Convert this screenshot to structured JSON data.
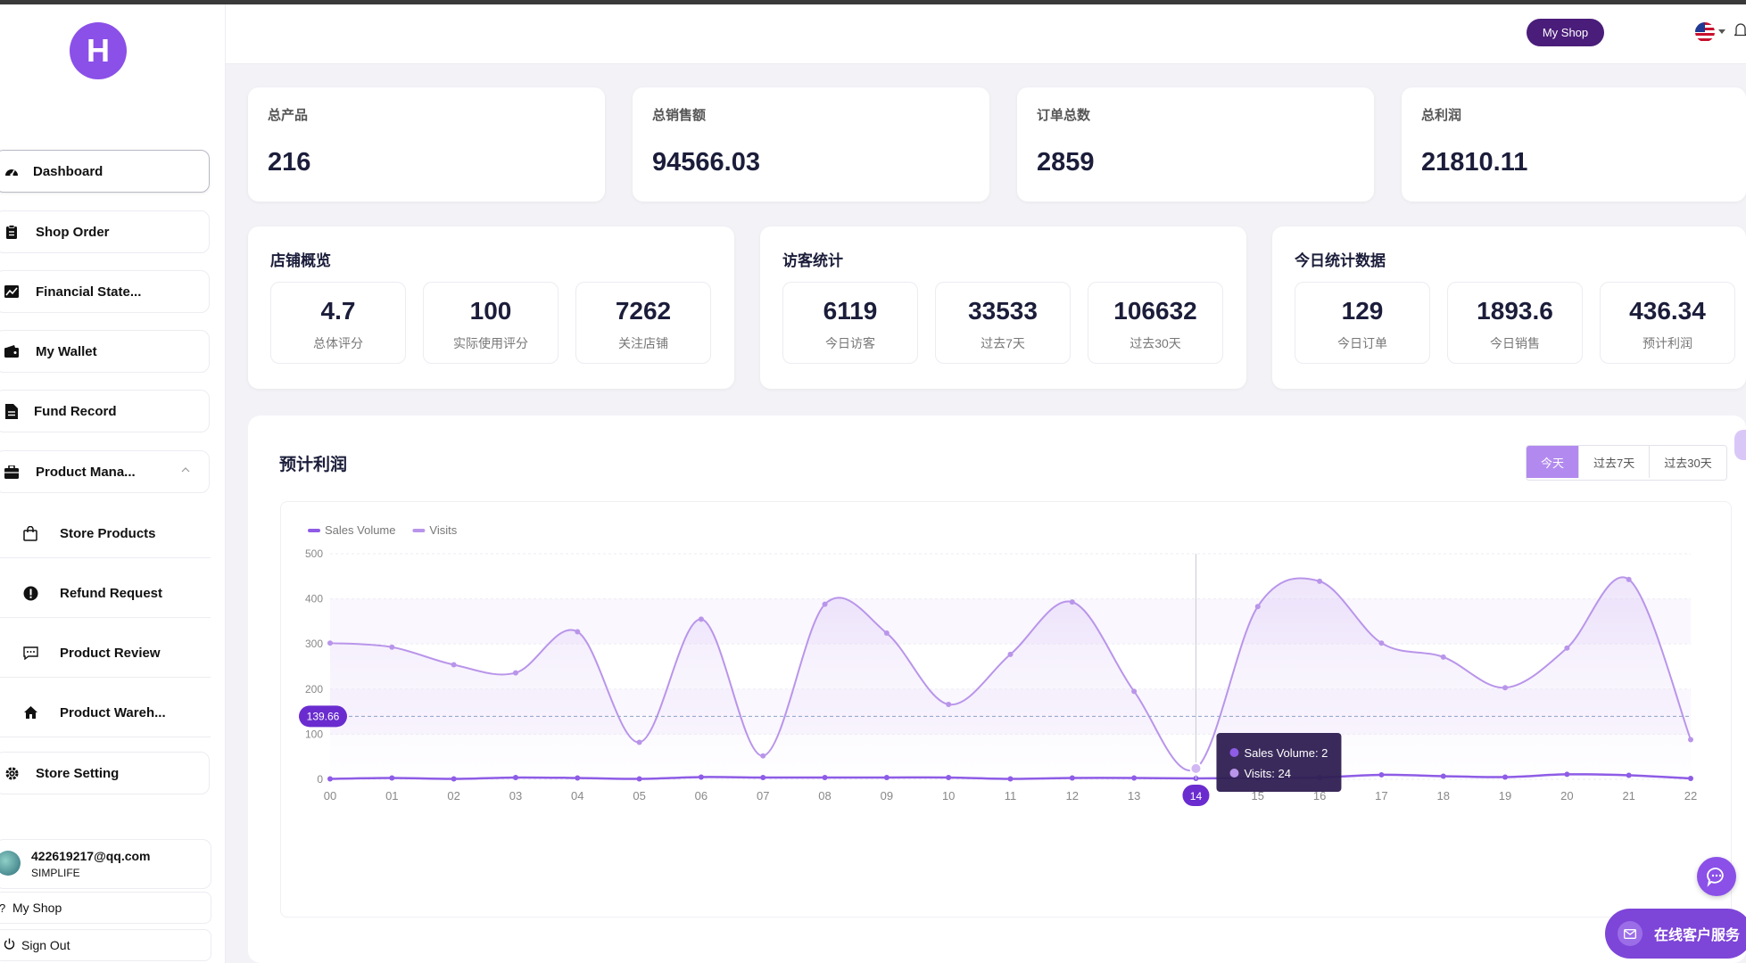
{
  "app": {
    "logo_letter": "H"
  },
  "sidebar": {
    "items": [
      {
        "label": "Dashboard",
        "icon": "dashboard-icon"
      },
      {
        "label": "Shop Order",
        "icon": "clipboard-icon"
      },
      {
        "label": "Financial State...",
        "icon": "line-chart-icon"
      },
      {
        "label": "My Wallet",
        "icon": "wallet-icon"
      },
      {
        "label": "Fund Record",
        "icon": "document-icon"
      },
      {
        "label": "Product Mana...",
        "icon": "briefcase-icon"
      }
    ],
    "sub_items": [
      {
        "label": "Store Products",
        "icon": "shopping-bag-icon"
      },
      {
        "label": "Refund Request",
        "icon": "alert-circle-icon"
      },
      {
        "label": "Product Review",
        "icon": "comment-icon"
      },
      {
        "label": "Product Wareh...",
        "icon": "home-icon"
      }
    ],
    "store_setting": {
      "label": "Store Setting",
      "icon": "gear-icon"
    },
    "user": {
      "email": "422619217@qq.com",
      "shop": "SIMPLIFE"
    },
    "my_shop_link": "My Shop",
    "sign_out": "Sign Out"
  },
  "header": {
    "my_shop_button": "My Shop"
  },
  "stats": [
    {
      "label": "总产品",
      "value": "216"
    },
    {
      "label": "总销售额",
      "value": "94566.03"
    },
    {
      "label": "订单总数",
      "value": "2859"
    },
    {
      "label": "总利润",
      "value": "21810.11"
    }
  ],
  "panels": [
    {
      "title": "店铺概览",
      "metrics": [
        {
          "value": "4.7",
          "label": "总体评分"
        },
        {
          "value": "100",
          "label": "实际使用评分"
        },
        {
          "value": "7262",
          "label": "关注店铺"
        }
      ]
    },
    {
      "title": "访客统计",
      "metrics": [
        {
          "value": "6119",
          "label": "今日访客"
        },
        {
          "value": "33533",
          "label": "过去7天"
        },
        {
          "value": "106632",
          "label": "过去30天"
        }
      ]
    },
    {
      "title": "今日统计数据",
      "metrics": [
        {
          "value": "129",
          "label": "今日订单"
        },
        {
          "value": "1893.6",
          "label": "今日销售"
        },
        {
          "value": "436.34",
          "label": "预计利润"
        }
      ]
    }
  ],
  "chart_section": {
    "title": "预计利润",
    "ranges": [
      "今天",
      "过去7天",
      "过去30天"
    ],
    "active_range": "今天"
  },
  "chart_data": {
    "type": "area",
    "categories": [
      "00",
      "01",
      "02",
      "03",
      "04",
      "05",
      "06",
      "07",
      "08",
      "09",
      "10",
      "11",
      "12",
      "13",
      "14",
      "15",
      "16",
      "17",
      "18",
      "19",
      "20",
      "21",
      "22"
    ],
    "series": [
      {
        "name": "Sales Volume",
        "color": "#8e5ce6",
        "values": [
          1,
          3,
          1,
          4,
          3,
          1,
          5,
          4,
          4,
          4,
          4,
          1,
          3,
          3,
          2,
          3,
          4,
          10,
          7,
          5,
          11,
          9,
          2
        ]
      },
      {
        "name": "Visits",
        "color": "#b995ea",
        "values": [
          302,
          293,
          254,
          236,
          327,
          82,
          355,
          52,
          388,
          324,
          166,
          277,
          393,
          195,
          24,
          383,
          439,
          302,
          271,
          203,
          291,
          443,
          88
        ]
      }
    ],
    "ylim": [
      0,
      500
    ],
    "yticks": [
      0,
      100,
      200,
      300,
      400,
      500
    ],
    "average_line": {
      "value": 139.66,
      "label": "139.66"
    },
    "highlight": {
      "category": "14",
      "label": "14"
    },
    "tooltip": {
      "sales_label": "Sales Volume: 2",
      "visits_label": "Visits: 24"
    },
    "legend": "top-left",
    "grid": true
  },
  "floating": {
    "service_label": "在线客户服务"
  }
}
